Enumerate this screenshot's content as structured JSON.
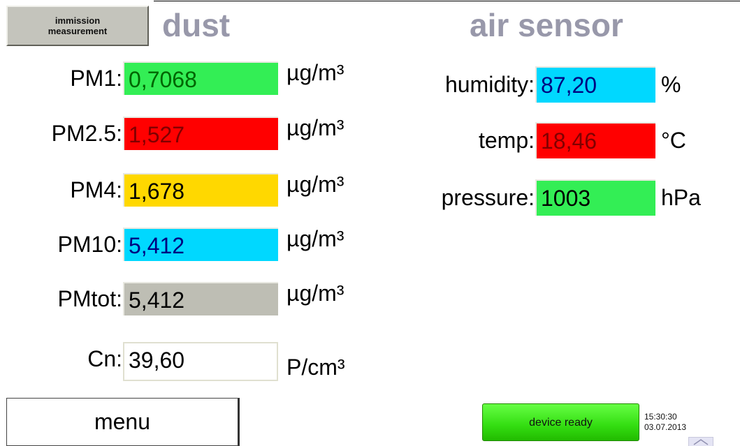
{
  "header": {
    "button": [
      "immission",
      "measurement"
    ],
    "dust_title": "dust",
    "air_title": "air sensor"
  },
  "dust": [
    {
      "label": "PM1:",
      "value": "0,7068",
      "unit": "µg/m³"
    },
    {
      "label": "PM2.5:",
      "value": "1,527",
      "unit": "µg/m³"
    },
    {
      "label": "PM4:",
      "value": "1,678",
      "unit": "µg/m³"
    },
    {
      "label": "PM10:",
      "value": "5,412",
      "unit": "µg/m³"
    },
    {
      "label": "PMtot:",
      "value": "5,412",
      "unit": "µg/m³"
    },
    {
      "label": "Cn:",
      "value": "39,60",
      "unit": "P/cm³"
    }
  ],
  "air": [
    {
      "label": "humidity:",
      "value": "87,20",
      "unit": "%"
    },
    {
      "label": "temp:",
      "value": "18,46",
      "unit": "°C"
    },
    {
      "label": "pressure:",
      "value": "1003",
      "unit": "hPa"
    }
  ],
  "footer": {
    "menu": "menu",
    "status": "device ready",
    "time": "15:30:30",
    "date": "03.07.2013"
  }
}
